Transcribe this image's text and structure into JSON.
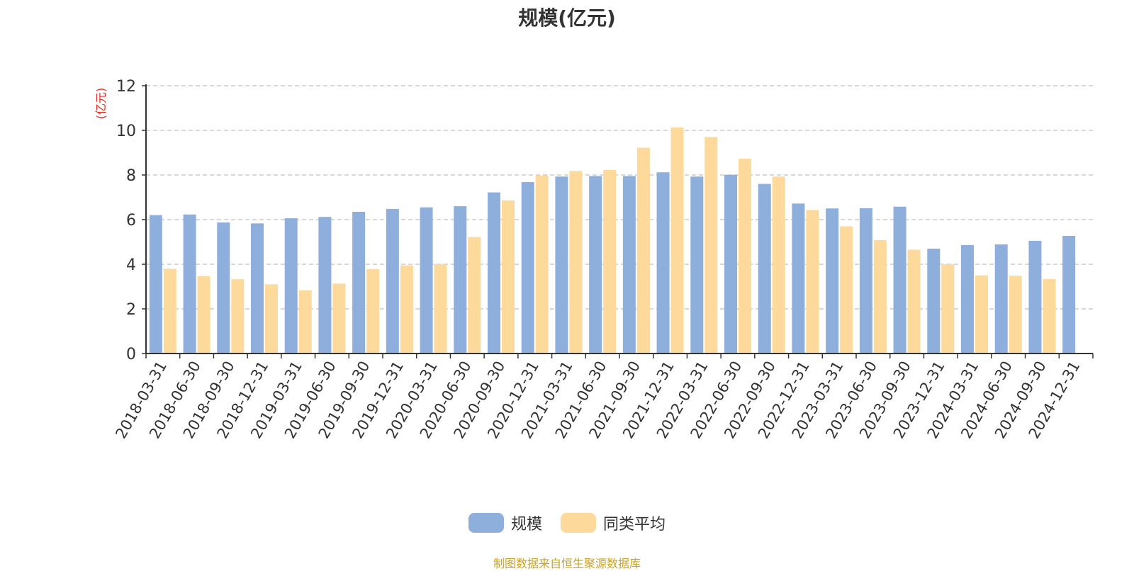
{
  "chart_data": {
    "type": "bar",
    "title": "规模(亿元)",
    "ylabel": "(亿元)",
    "ylim": [
      0,
      12
    ],
    "yticks": [
      0,
      2,
      4,
      6,
      8,
      10,
      12
    ],
    "grid": true,
    "legend_position": "bottom",
    "categories": [
      "2018-03-31",
      "2018-06-30",
      "2018-09-30",
      "2018-12-31",
      "2019-03-31",
      "2019-06-30",
      "2019-09-30",
      "2019-12-31",
      "2020-03-31",
      "2020-06-30",
      "2020-09-30",
      "2020-12-31",
      "2021-03-31",
      "2021-06-30",
      "2021-09-30",
      "2021-12-31",
      "2022-03-31",
      "2022-06-30",
      "2022-09-30",
      "2022-12-31",
      "2023-03-31",
      "2023-06-30",
      "2023-09-30",
      "2023-12-31",
      "2024-03-31",
      "2024-06-30",
      "2024-09-30",
      "2024-12-31"
    ],
    "series": [
      {
        "name": "规模",
        "color": "#8EAEDB",
        "values": [
          6.2,
          6.23,
          5.87,
          5.83,
          6.06,
          6.12,
          6.35,
          6.48,
          6.55,
          6.6,
          7.22,
          7.68,
          7.93,
          7.95,
          7.95,
          8.12,
          7.93,
          8.01,
          7.6,
          6.72,
          6.5,
          6.51,
          6.58,
          4.7,
          4.86,
          4.89,
          5.05,
          5.27
        ]
      },
      {
        "name": "同类平均",
        "color": "#FDD99B",
        "values": [
          3.8,
          3.46,
          3.33,
          3.1,
          2.83,
          3.13,
          3.78,
          3.95,
          4.0,
          5.22,
          6.86,
          7.98,
          8.18,
          8.23,
          9.22,
          10.13,
          9.7,
          8.73,
          7.93,
          6.43,
          5.7,
          5.08,
          4.65,
          4.0,
          3.5,
          3.49,
          3.34,
          null
        ]
      }
    ]
  },
  "source_text": "制图数据来自恒生聚源数据库"
}
